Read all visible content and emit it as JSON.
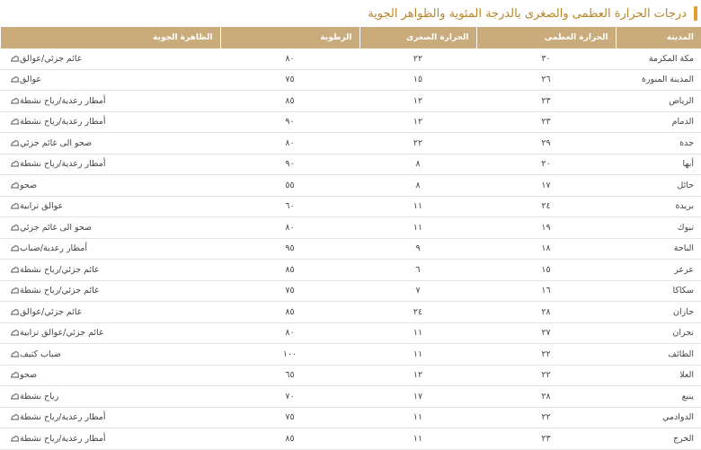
{
  "title": "درجات الحرارة العظمى والصغرى بالدرجة المئوية والظواهر الجوية",
  "table": {
    "header": [
      "المدينة",
      "الحرارة العظمى",
      "الحرارة الصغرى",
      "الرطوبة",
      "الظاهرة الجوية"
    ],
    "rows": [
      [
        "مكة المكرمة",
        "٣٠",
        "٢٢",
        "٨٠",
        "غائم جزئي/عوالق"
      ],
      [
        "المدينة المنورة",
        "٢٦",
        "١٥",
        "٧٥",
        "عوالق"
      ],
      [
        "الرياض",
        "٢٣",
        "١٢",
        "٨٥",
        "أمطار رعدية/رياح نشطة"
      ],
      [
        "الدمام",
        "٢٣",
        "١٢",
        "٩٠",
        "أمطار رعدية/رياح نشطة"
      ],
      [
        "جدة",
        "٢٩",
        "٢٢",
        "٨٠",
        "صحو الى غائم جزئي"
      ],
      [
        "أبها",
        "٢٠",
        "٨",
        "٩٠",
        "أمطار رعدية/رياح نشطة"
      ],
      [
        "حائل",
        "١٧",
        "٨",
        "٥٥",
        "صحو"
      ],
      [
        "بريدة",
        "٢٤",
        "١١",
        "٦٠",
        "عوالق ترابية"
      ],
      [
        "تبوك",
        "١٩",
        "١١",
        "٨٠",
        "صحو الى غائم جزئي"
      ],
      [
        "الباحة",
        "١٨",
        "٩",
        "٩٥",
        "أمطار رعدية/ضباب"
      ],
      [
        "عرعر",
        "١٥",
        "٦",
        "٨٥",
        "غائم جزئي/رياح نشطة"
      ],
      [
        "سكاكا",
        "١٦",
        "٧",
        "٧٥",
        "غائم جزئي/رياح نشطة"
      ],
      [
        "جازان",
        "٢٨",
        "٢٤",
        "٨٥",
        "غائم جزئي/عوالق"
      ],
      [
        "نجران",
        "٢٧",
        "١١",
        "٨٠",
        "غائم جزئي/عوالق ترابية"
      ],
      [
        "الطائف",
        "٢٢",
        "١١",
        "١٠٠",
        "ضباب كثيف"
      ],
      [
        "العلا",
        "٢٢",
        "١٢",
        "٦٥",
        "صحو"
      ],
      [
        "ينبع",
        "٢٨",
        "١٧",
        "٧٠",
        "رياح نشطة"
      ],
      [
        "الدوادمي",
        "٢٢",
        "١١",
        "٧٥",
        "أمطار رعدية/رياح نشطة"
      ],
      [
        "الخرج",
        "٢٣",
        "١١",
        "٨٥",
        "أمطار رعدية/رياح نشطة"
      ]
    ]
  }
}
